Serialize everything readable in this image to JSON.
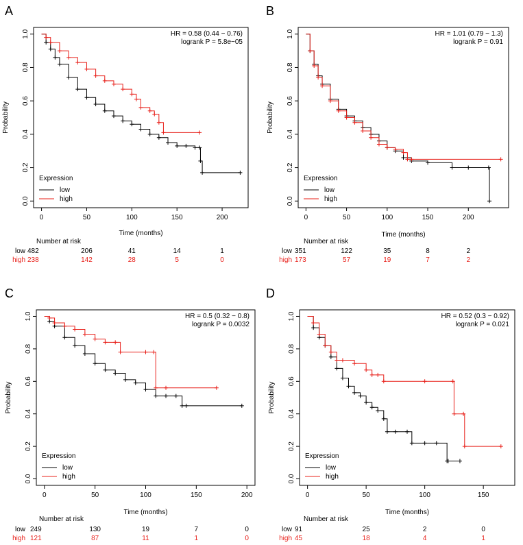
{
  "colors": {
    "low": "#000000",
    "high": "#e8201a"
  },
  "chart_data": [
    {
      "type": "line",
      "panel_label": "A",
      "xlabel": "Time (months)",
      "ylabel": "Probability",
      "xlim": [
        0,
        220
      ],
      "ylim": [
        0,
        1
      ],
      "xticks": [
        0,
        50,
        100,
        150,
        200
      ],
      "yticks": [
        0.0,
        0.2,
        0.4,
        0.6,
        0.8,
        1.0
      ],
      "hr_text": "HR = 0.58 (0.44 − 0.76)",
      "logrank_text": "logrank P = 5.8e−05",
      "legend_title": "Expression",
      "legend_low": "low",
      "legend_high": "high",
      "series": [
        {
          "name": "low",
          "x": [
            0,
            5,
            10,
            15,
            20,
            30,
            40,
            50,
            60,
            70,
            80,
            90,
            100,
            110,
            120,
            130,
            140,
            150,
            160,
            170,
            175,
            176,
            178,
            220
          ],
          "y": [
            1.0,
            0.95,
            0.91,
            0.86,
            0.82,
            0.74,
            0.67,
            0.62,
            0.58,
            0.54,
            0.51,
            0.48,
            0.46,
            0.43,
            0.4,
            0.38,
            0.35,
            0.33,
            0.33,
            0.32,
            0.32,
            0.24,
            0.17,
            0.17
          ]
        },
        {
          "name": "high",
          "x": [
            0,
            5,
            10,
            20,
            30,
            40,
            50,
            60,
            70,
            80,
            90,
            100,
            105,
            110,
            120,
            125,
            130,
            135,
            175
          ],
          "y": [
            1.0,
            0.98,
            0.95,
            0.9,
            0.86,
            0.83,
            0.79,
            0.75,
            0.72,
            0.7,
            0.67,
            0.64,
            0.61,
            0.56,
            0.54,
            0.52,
            0.47,
            0.41,
            0.41
          ]
        }
      ],
      "risk_title": "Number at risk",
      "risk_times": [
        0,
        50,
        100,
        150,
        200
      ],
      "risk_low": [
        "482",
        "206",
        "41",
        "14",
        "1"
      ],
      "risk_high": [
        "238",
        "142",
        "28",
        "5",
        "0"
      ]
    },
    {
      "type": "line",
      "panel_label": "B",
      "xlabel": "Time (months)",
      "ylabel": "Probability",
      "xlim": [
        0,
        240
      ],
      "ylim": [
        0,
        1
      ],
      "xticks": [
        0,
        50,
        100,
        150,
        200
      ],
      "yticks": [
        0.0,
        0.2,
        0.4,
        0.6,
        0.8,
        1.0
      ],
      "hr_text": "HR = 1.01 (0.79 − 1.3)",
      "logrank_text": "logrank P = 0.91",
      "legend_title": "Expression",
      "legend_low": "low",
      "legend_high": "high",
      "series": [
        {
          "name": "low",
          "x": [
            0,
            5,
            10,
            15,
            20,
            30,
            40,
            50,
            60,
            70,
            80,
            90,
            100,
            110,
            120,
            130,
            150,
            180,
            200,
            225,
            226
          ],
          "y": [
            1.0,
            0.9,
            0.82,
            0.75,
            0.7,
            0.61,
            0.55,
            0.51,
            0.48,
            0.44,
            0.4,
            0.36,
            0.32,
            0.3,
            0.26,
            0.24,
            0.23,
            0.2,
            0.2,
            0.2,
            0.0
          ]
        },
        {
          "name": "high",
          "x": [
            0,
            5,
            10,
            15,
            20,
            30,
            40,
            50,
            60,
            70,
            80,
            90,
            100,
            110,
            120,
            125,
            130,
            240
          ],
          "y": [
            1.0,
            0.9,
            0.81,
            0.74,
            0.69,
            0.6,
            0.54,
            0.5,
            0.47,
            0.42,
            0.38,
            0.34,
            0.32,
            0.31,
            0.29,
            0.25,
            0.25,
            0.25
          ]
        }
      ],
      "risk_title": "Number at risk",
      "risk_times": [
        0,
        50,
        100,
        150,
        200
      ],
      "risk_low": [
        "351",
        "122",
        "35",
        "8",
        "2"
      ],
      "risk_high": [
        "173",
        "57",
        "19",
        "7",
        "2"
      ]
    },
    {
      "type": "line",
      "panel_label": "C",
      "xlabel": "Time (months)",
      "ylabel": "Probability",
      "xlim": [
        0,
        200
      ],
      "ylim": [
        0,
        1
      ],
      "xticks": [
        0,
        50,
        100,
        150,
        200
      ],
      "yticks": [
        0.0,
        0.2,
        0.4,
        0.6,
        0.8,
        1.0
      ],
      "hr_text": "HR = 0.5 (0.32 − 0.8)",
      "logrank_text": "logrank P = 0.0032",
      "legend_title": "Expression",
      "legend_low": "low",
      "legend_high": "high",
      "series": [
        {
          "name": "low",
          "x": [
            0,
            5,
            10,
            20,
            30,
            40,
            50,
            60,
            70,
            80,
            90,
            100,
            110,
            120,
            130,
            136,
            140,
            195
          ],
          "y": [
            1.0,
            0.97,
            0.94,
            0.87,
            0.82,
            0.77,
            0.71,
            0.67,
            0.65,
            0.61,
            0.59,
            0.55,
            0.51,
            0.51,
            0.51,
            0.45,
            0.45,
            0.45
          ]
        },
        {
          "name": "high",
          "x": [
            0,
            5,
            10,
            20,
            30,
            40,
            50,
            60,
            70,
            75,
            100,
            108,
            110,
            120,
            170
          ],
          "y": [
            1.0,
            0.99,
            0.96,
            0.94,
            0.92,
            0.89,
            0.86,
            0.84,
            0.84,
            0.78,
            0.78,
            0.78,
            0.56,
            0.56,
            0.56
          ]
        }
      ],
      "risk_title": "Number at risk",
      "risk_times": [
        0,
        50,
        100,
        150,
        200
      ],
      "risk_low": [
        "249",
        "130",
        "19",
        "7",
        "0"
      ],
      "risk_high": [
        "121",
        "87",
        "11",
        "1",
        "0"
      ]
    },
    {
      "type": "line",
      "panel_label": "D",
      "xlabel": "Time (months)",
      "ylabel": "Probability",
      "xlim": [
        0,
        170
      ],
      "ylim": [
        0,
        1
      ],
      "xticks": [
        0,
        50,
        100,
        150
      ],
      "yticks": [
        0.0,
        0.2,
        0.4,
        0.6,
        0.8,
        1.0
      ],
      "hr_text": "HR = 0.52 (0.3 − 0.92)",
      "logrank_text": "logrank P = 0.021",
      "legend_title": "Expression",
      "legend_low": "low",
      "legend_high": "high",
      "series": [
        {
          "name": "low",
          "x": [
            0,
            5,
            10,
            15,
            20,
            25,
            30,
            35,
            40,
            45,
            50,
            55,
            60,
            65,
            68,
            75,
            85,
            89,
            100,
            110,
            119,
            120,
            130
          ],
          "y": [
            1.0,
            0.93,
            0.87,
            0.82,
            0.75,
            0.68,
            0.62,
            0.57,
            0.53,
            0.51,
            0.47,
            0.44,
            0.42,
            0.37,
            0.29,
            0.29,
            0.29,
            0.22,
            0.22,
            0.22,
            0.11,
            0.11,
            0.11
          ]
        },
        {
          "name": "high",
          "x": [
            0,
            5,
            10,
            15,
            20,
            25,
            30,
            40,
            50,
            55,
            60,
            65,
            100,
            124,
            125,
            133,
            134,
            165
          ],
          "y": [
            1.0,
            0.96,
            0.89,
            0.82,
            0.78,
            0.73,
            0.73,
            0.71,
            0.67,
            0.64,
            0.64,
            0.6,
            0.6,
            0.6,
            0.4,
            0.4,
            0.2,
            0.2
          ]
        }
      ],
      "risk_title": "Number at risk",
      "risk_times": [
        0,
        50,
        100,
        150
      ],
      "risk_low": [
        "91",
        "25",
        "2",
        "0"
      ],
      "risk_high": [
        "45",
        "18",
        "4",
        "1"
      ]
    }
  ]
}
